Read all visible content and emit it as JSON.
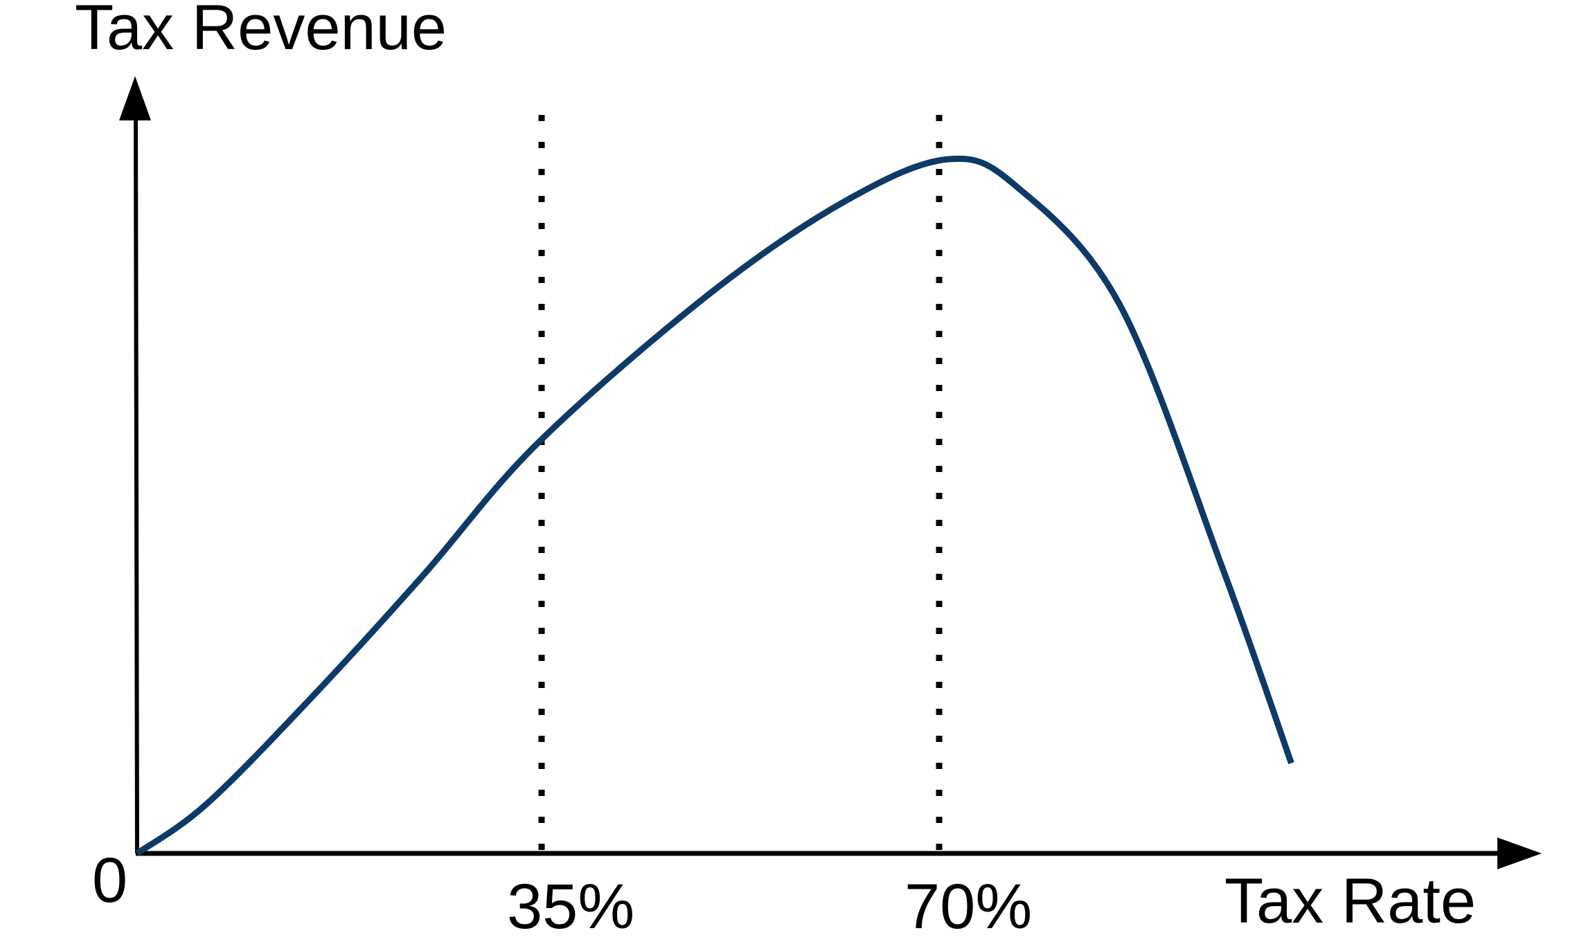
{
  "chart_data": {
    "type": "line",
    "ylabel": "Tax Revenue",
    "xlabel": "Tax Rate",
    "origin_label": "0",
    "x_ticks": [
      {
        "value": 35,
        "label": "35%"
      },
      {
        "value": 70,
        "label": "70%"
      }
    ],
    "reference_lines": [
      35,
      70
    ],
    "xlim": [
      0,
      120
    ],
    "ylim": [
      0,
      105
    ],
    "grid": false,
    "series": [
      {
        "x": [
          0,
          6,
          15,
          25,
          35,
          50,
          62,
          71,
          77,
          86,
          95,
          101
        ],
        "values": [
          0,
          7,
          22,
          40,
          59,
          80.5,
          94,
          100,
          96,
          79,
          41,
          13
        ]
      }
    ],
    "colors": {
      "curve": "#0d3a66",
      "axes": "#000000",
      "reference_line": "#000000"
    }
  }
}
